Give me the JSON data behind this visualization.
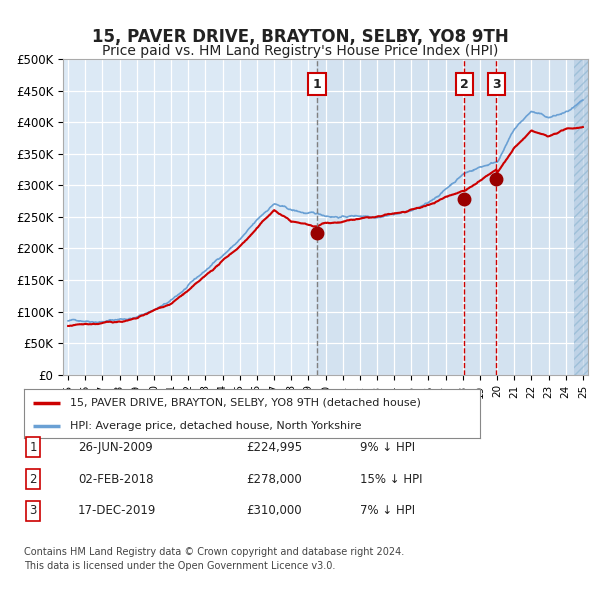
{
  "title": "15, PAVER DRIVE, BRAYTON, SELBY, YO8 9TH",
  "subtitle": "Price paid vs. HM Land Registry's House Price Index (HPI)",
  "title_fontsize": 12,
  "subtitle_fontsize": 10,
  "background_color": "#ffffff",
  "plot_bg_color": "#dce9f5",
  "hatch_color": "#b0c8e0",
  "grid_color": "#ffffff",
  "ylim": [
    0,
    500000
  ],
  "yticks": [
    0,
    50000,
    100000,
    150000,
    200000,
    250000,
    300000,
    350000,
    400000,
    450000,
    500000
  ],
  "ytick_labels": [
    "£0",
    "£50K",
    "£100K",
    "£150K",
    "£200K",
    "£250K",
    "£300K",
    "£350K",
    "£400K",
    "£450K",
    "£500K"
  ],
  "xmin_year": 1995,
  "xmax_year": 2025,
  "xtick_years": [
    1995,
    1996,
    1997,
    1998,
    1999,
    2000,
    2001,
    2002,
    2003,
    2004,
    2005,
    2006,
    2007,
    2008,
    2009,
    2010,
    2011,
    2012,
    2013,
    2014,
    2015,
    2016,
    2017,
    2018,
    2019,
    2020,
    2021,
    2022,
    2023,
    2024,
    2025
  ],
  "hpi_color": "#6aa0d4",
  "price_color": "#cc0000",
  "marker_color": "#990000",
  "vline1_color": "#808080",
  "vline23_color": "#cc0000",
  "sale1": {
    "year": 2009.49,
    "price": 224995,
    "label": "1"
  },
  "sale2": {
    "year": 2018.09,
    "price": 278000,
    "label": "2"
  },
  "sale3": {
    "year": 2019.96,
    "price": 310000,
    "label": "3"
  },
  "legend_property": "15, PAVER DRIVE, BRAYTON, SELBY, YO8 9TH (detached house)",
  "legend_hpi": "HPI: Average price, detached house, North Yorkshire",
  "table": [
    {
      "num": "1",
      "date": "26-JUN-2009",
      "price": "£224,995",
      "note": "9% ↓ HPI"
    },
    {
      "num": "2",
      "date": "02-FEB-2018",
      "price": "£278,000",
      "note": "15% ↓ HPI"
    },
    {
      "num": "3",
      "date": "17-DEC-2019",
      "price": "£310,000",
      "note": "7% ↓ HPI"
    }
  ],
  "footer": "Contains HM Land Registry data © Crown copyright and database right 2024.\nThis data is licensed under the Open Government Licence v3.0.",
  "hpi_anchors_x": [
    1995,
    1997,
    1999,
    2001,
    2003,
    2005,
    2007,
    2008,
    2009,
    2010,
    2011,
    2012,
    2013,
    2014,
    2015,
    2016,
    2017,
    2018,
    2019,
    2020,
    2021,
    2022,
    2023,
    2024,
    2025
  ],
  "hpi_anchors_y": [
    85000,
    88000,
    95000,
    120000,
    165000,
    215000,
    270000,
    258000,
    252000,
    248000,
    248000,
    250000,
    252000,
    258000,
    263000,
    272000,
    295000,
    320000,
    332000,
    342000,
    392000,
    420000,
    408000,
    415000,
    428000
  ],
  "price_anchors_x": [
    1995,
    1997,
    1999,
    2001,
    2003,
    2005,
    2007,
    2008,
    2009.49,
    2010,
    2011,
    2012,
    2013,
    2014,
    2015,
    2016,
    2017,
    2018.09,
    2019.96,
    2020,
    2021,
    2022,
    2023,
    2024,
    2025
  ],
  "price_anchors_y": [
    77000,
    80000,
    86000,
    108000,
    148000,
    195000,
    252000,
    234000,
    224995,
    232000,
    235000,
    238000,
    239000,
    242000,
    246000,
    252000,
    266000,
    278000,
    310000,
    303000,
    342000,
    368000,
    358000,
    368000,
    373000
  ]
}
